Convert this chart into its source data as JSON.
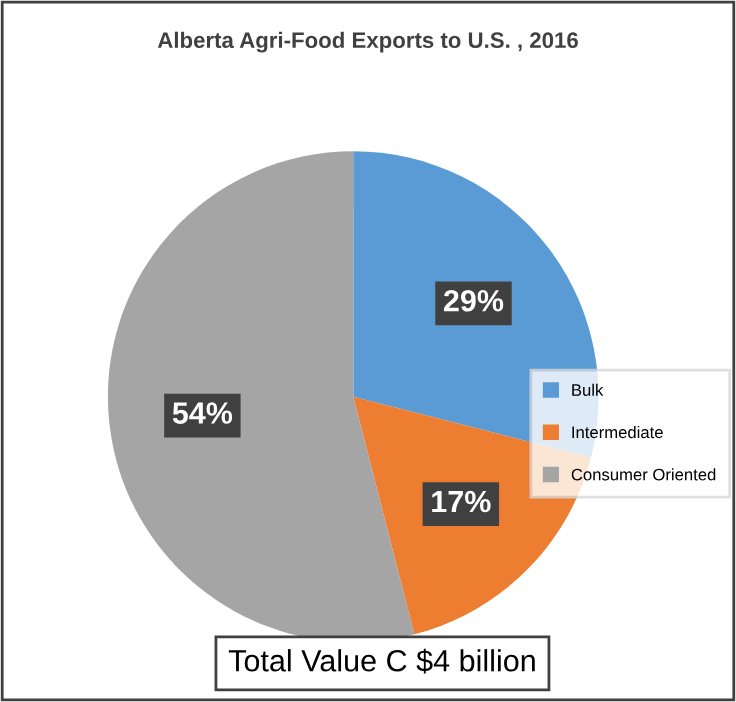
{
  "chart_data": {
    "type": "pie",
    "title": "Alberta Agri-Food Exports to U.S. , 2016",
    "categories": [
      "Bulk",
      "Intermediate",
      "Consumer Oriented"
    ],
    "values": [
      29,
      17,
      54
    ],
    "colors": [
      "#5b9bd5",
      "#ed7d31",
      "#a5a5a5"
    ],
    "value_labels": [
      "29%",
      "17%",
      "54%"
    ],
    "legend": "right",
    "annotations": [
      "Total Value C $4 billion"
    ]
  }
}
